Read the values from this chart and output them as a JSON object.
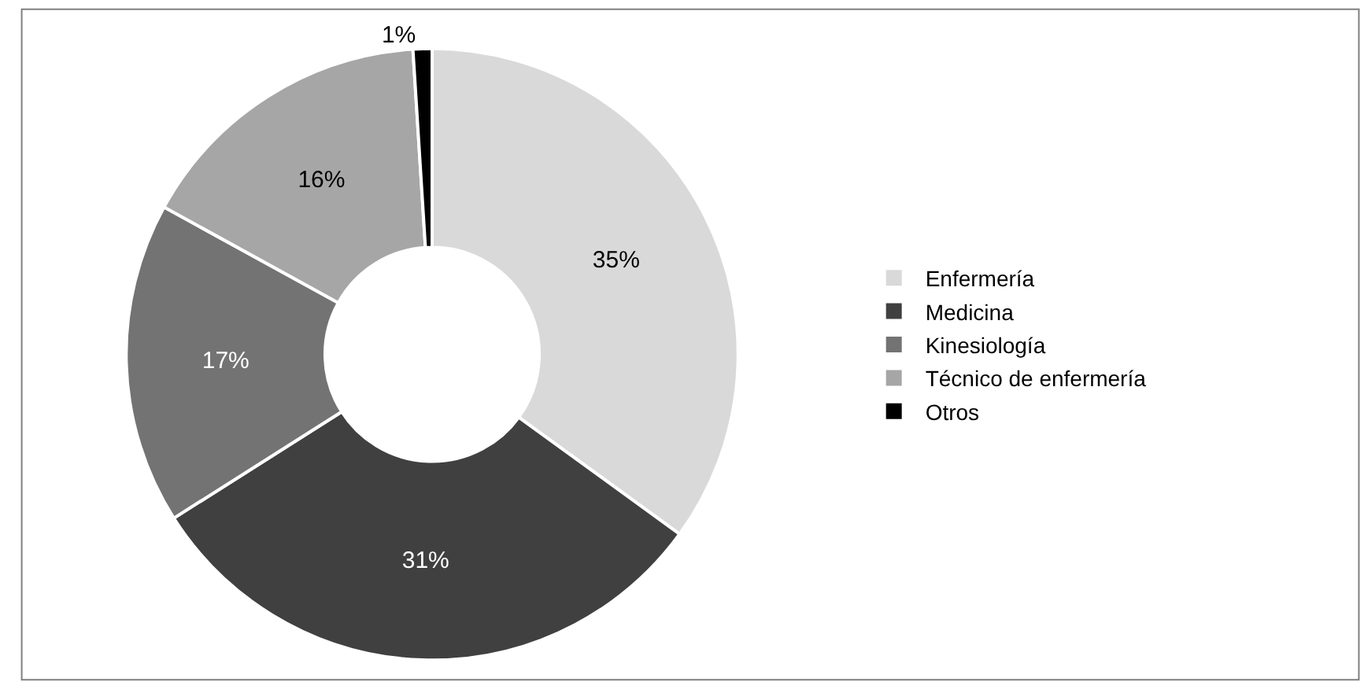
{
  "chart_data": {
    "type": "donut",
    "categories": [
      "Enfermería",
      "Medicina",
      "Kinesiología",
      "Técnico de enfermería",
      "Otros"
    ],
    "values": [
      35,
      31,
      17,
      16,
      1
    ],
    "colors": [
      "#d9d9d9",
      "#404040",
      "#737373",
      "#a6a6a6",
      "#000000"
    ],
    "value_labels": [
      "35%",
      "31%",
      "17%",
      "16%",
      "1%"
    ],
    "legend": "right"
  }
}
